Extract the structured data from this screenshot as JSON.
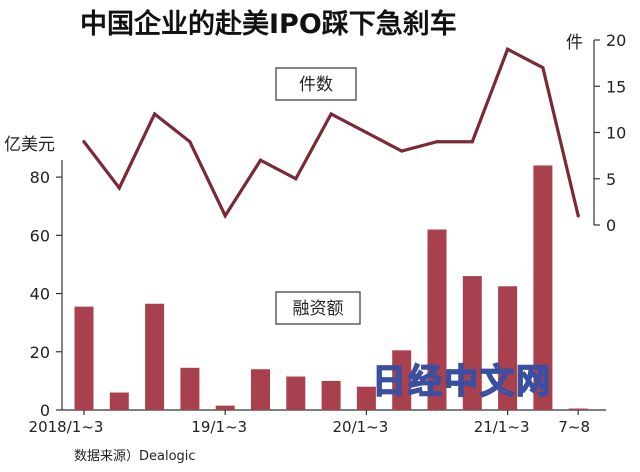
{
  "chart_data": {
    "type": "bar+line",
    "title": "中国企业的赴美IPO踩下急刹车",
    "left_axis_unit": "亿美元",
    "right_axis_unit": "件",
    "left_ylim": [
      0,
      90
    ],
    "left_ticks": [
      0,
      20,
      40,
      60,
      80
    ],
    "right_ylim": [
      0,
      20
    ],
    "right_ticks": [
      0,
      5,
      10,
      15,
      20
    ],
    "x_tick_labels": [
      "2018/1~3",
      "19/1~3",
      "20/1~3",
      "21/1~3",
      "7~8"
    ],
    "periods": 15,
    "bar_series": {
      "name": "融资额",
      "color": "#a8404e",
      "values": [
        35.5,
        6,
        36.5,
        14.5,
        1.5,
        14,
        11.5,
        10,
        8,
        20.5,
        62,
        46,
        42.5,
        84,
        0.5
      ]
    },
    "line_series": {
      "name": "件数",
      "color": "#7a2a36",
      "values": [
        9,
        4,
        12,
        9,
        1,
        7,
        5,
        12,
        10,
        8,
        9,
        9,
        19,
        17,
        1
      ]
    },
    "grid": false
  },
  "source_label": "数据来源）Dealogic",
  "watermark": "日经中文网"
}
